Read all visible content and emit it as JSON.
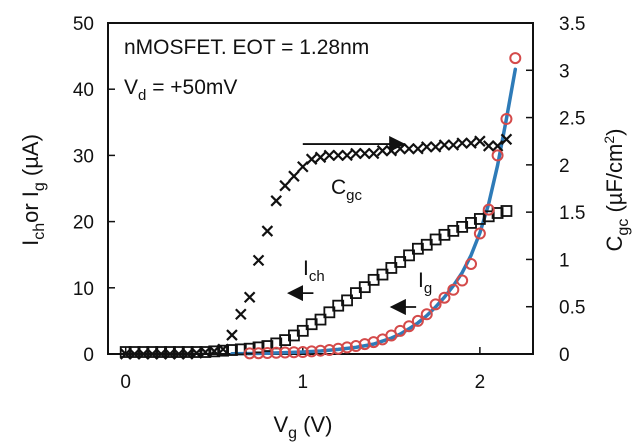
{
  "chart_data": {
    "type": "scatter",
    "annotation_lines": [
      "nMOSFET. EOT = 1.28nm",
      "V_d = +50mV"
    ],
    "x_axis": {
      "label": "V_g (V)",
      "range": [
        -0.1,
        2.3
      ],
      "ticks": [
        0,
        1,
        2
      ]
    },
    "y_axis_left": {
      "label": "I_ch or I_g (µA)",
      "range": [
        0,
        50
      ],
      "ticks": [
        0,
        10,
        20,
        30,
        40,
        50
      ]
    },
    "y_axis_right": {
      "label": "C_gc (µF/cm²)",
      "range": [
        0,
        3.5
      ],
      "ticks": [
        0,
        0.5,
        1,
        1.5,
        2,
        2.5,
        3,
        3.5
      ],
      "tick_labels": [
        "0",
        "0.5",
        "1",
        "1.5",
        "2",
        "2.5",
        "3",
        "3.5"
      ]
    },
    "grid": false,
    "series": [
      {
        "name": "C_gc",
        "marker": "x",
        "color": "#111111",
        "axis": "right",
        "arrow": {
          "from": [
            1.0,
            2.22
          ],
          "to": [
            1.57,
            2.22
          ],
          "direction": "right"
        },
        "x": [
          0.0,
          0.05,
          0.1,
          0.15,
          0.2,
          0.25,
          0.3,
          0.35,
          0.4,
          0.45,
          0.5,
          0.55,
          0.6,
          0.65,
          0.7,
          0.75,
          0.8,
          0.85,
          0.9,
          0.95,
          1.0,
          1.05,
          1.1,
          1.15,
          1.2,
          1.25,
          1.3,
          1.35,
          1.4,
          1.45,
          1.5,
          1.55,
          1.6,
          1.65,
          1.7,
          1.75,
          1.8,
          1.85,
          1.9,
          1.95,
          2.0,
          2.05,
          2.1,
          2.15
        ],
        "y": [
          0.0,
          0.0,
          0.0,
          0.0,
          0.0,
          0.0,
          0.0,
          0.0,
          0.01,
          0.02,
          0.03,
          0.05,
          0.2,
          0.42,
          0.6,
          0.99,
          1.3,
          1.62,
          1.78,
          1.88,
          1.98,
          2.06,
          2.08,
          2.1,
          2.1,
          2.1,
          2.12,
          2.12,
          2.12,
          2.15,
          2.15,
          2.17,
          2.17,
          2.17,
          2.19,
          2.19,
          2.21,
          2.21,
          2.23,
          2.23,
          2.25,
          2.2,
          2.2,
          2.27
        ]
      },
      {
        "name": "I_ch",
        "marker": "square",
        "color": "#111111",
        "axis": "left",
        "arrow": {
          "from": [
            1.06,
            9.2
          ],
          "to": [
            0.92,
            9.2
          ],
          "direction": "left"
        },
        "x": [
          0.0,
          0.05,
          0.1,
          0.15,
          0.2,
          0.25,
          0.3,
          0.35,
          0.4,
          0.45,
          0.5,
          0.55,
          0.6,
          0.65,
          0.7,
          0.75,
          0.8,
          0.85,
          0.9,
          0.95,
          1.0,
          1.05,
          1.1,
          1.15,
          1.2,
          1.25,
          1.3,
          1.35,
          1.4,
          1.45,
          1.5,
          1.55,
          1.6,
          1.65,
          1.7,
          1.75,
          1.8,
          1.85,
          1.9,
          1.95,
          2.0,
          2.05,
          2.1,
          2.15
        ],
        "y": [
          0.3,
          0.3,
          0.3,
          0.3,
          0.3,
          0.3,
          0.3,
          0.3,
          0.3,
          0.3,
          0.4,
          0.5,
          0.6,
          0.7,
          0.8,
          1.0,
          1.2,
          1.6,
          2.1,
          2.8,
          3.5,
          4.5,
          5.2,
          6.3,
          7.3,
          8.1,
          9.2,
          10.1,
          11.2,
          12.0,
          13.0,
          13.9,
          14.9,
          15.9,
          16.5,
          17.3,
          18.0,
          18.6,
          19.2,
          19.8,
          20.4,
          20.8,
          21.3,
          21.6
        ]
      },
      {
        "name": "I_g",
        "marker": "circle",
        "color": "#d44a4a",
        "axis": "left",
        "arrow": {
          "from": [
            1.64,
            7.1
          ],
          "to": [
            1.5,
            7.1
          ],
          "direction": "left"
        },
        "x": [
          0.7,
          0.75,
          0.8,
          0.85,
          0.9,
          0.95,
          1.0,
          1.05,
          1.1,
          1.15,
          1.2,
          1.25,
          1.3,
          1.35,
          1.4,
          1.45,
          1.5,
          1.55,
          1.6,
          1.65,
          1.7,
          1.75,
          1.8,
          1.85,
          1.9,
          1.95,
          2.0,
          2.05,
          2.1,
          2.15,
          2.2
        ],
        "y": [
          0.1,
          0.12,
          0.15,
          0.18,
          0.22,
          0.27,
          0.3,
          0.4,
          0.5,
          0.6,
          0.8,
          1.0,
          1.2,
          1.5,
          1.8,
          2.2,
          2.8,
          3.5,
          4.2,
          5.0,
          6.0,
          7.5,
          8.5,
          9.7,
          11.1,
          13.6,
          18.2,
          21.8,
          30.0,
          35.5,
          44.7
        ]
      },
      {
        "name": "I_g fit",
        "style": "line",
        "color": "#2e7bb8",
        "axis": "left",
        "x": [
          0.6,
          0.8,
          1.0,
          1.1,
          1.2,
          1.3,
          1.4,
          1.5,
          1.55,
          1.6,
          1.65,
          1.7,
          1.75,
          1.8,
          1.85,
          1.9,
          1.95,
          2.0,
          2.05,
          2.1,
          2.15,
          2.2
        ],
        "y": [
          0.05,
          0.1,
          0.3,
          0.45,
          0.7,
          1.0,
          1.5,
          2.4,
          3.0,
          3.8,
          4.7,
          5.8,
          7.1,
          8.6,
          10.3,
          12.3,
          14.9,
          18.3,
          22.7,
          28.5,
          35.5,
          43.0
        ]
      }
    ]
  }
}
